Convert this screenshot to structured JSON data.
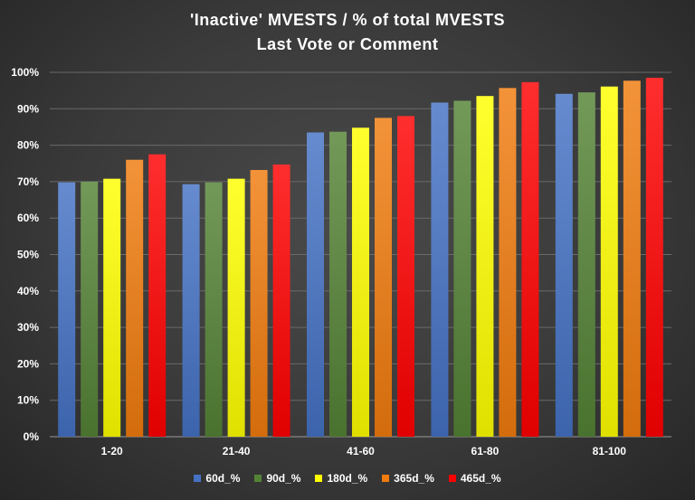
{
  "chart_data": {
    "type": "bar",
    "title": "'Inactive'  MVESTS  / % of total  MVESTS",
    "subtitle": "Last Vote or Comment",
    "categories": [
      "1-20",
      "21-40",
      "41-60",
      "61-80",
      "81-100"
    ],
    "series": [
      {
        "name": "60d_%",
        "color": "#4472c4",
        "values": [
          69.8,
          69.3,
          83.5,
          91.7,
          94.1
        ]
      },
      {
        "name": "90d_%",
        "color": "#548235",
        "values": [
          70.0,
          69.8,
          83.7,
          92.2,
          94.5
        ]
      },
      {
        "name": "180d_%",
        "color": "#ffff00",
        "values": [
          70.8,
          70.8,
          84.8,
          93.5,
          96.1
        ]
      },
      {
        "name": "365d_%",
        "color": "#f07b0e",
        "values": [
          76.0,
          73.2,
          87.5,
          95.7,
          97.7
        ]
      },
      {
        "name": "465d_%",
        "color": "#ff0000",
        "values": [
          77.5,
          74.7,
          88.0,
          97.3,
          98.5
        ]
      }
    ],
    "ylim": [
      0,
      100
    ],
    "yticks": [
      "0%",
      "10%",
      "20%",
      "30%",
      "40%",
      "50%",
      "60%",
      "70%",
      "80%",
      "90%",
      "100%"
    ],
    "grid": true,
    "legend": "bottom"
  }
}
